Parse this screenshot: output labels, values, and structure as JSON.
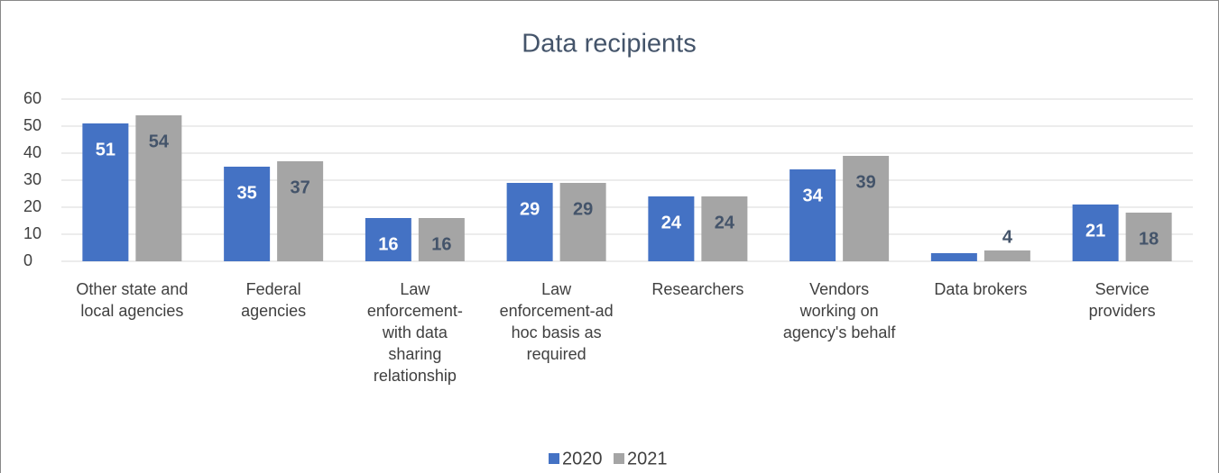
{
  "chart_data": {
    "type": "bar",
    "title": "Data recipients",
    "categories": [
      "Other state and local agencies",
      "Federal agencies",
      "Law enforcement-with data sharing relationship",
      "Law enforcement-ad hoc basis as required",
      "Researchers",
      "Vendors working on agency's behalf",
      "Data brokers",
      "Service providers"
    ],
    "series": [
      {
        "name": "2020",
        "color": "#4472c4",
        "values": [
          51,
          35,
          16,
          29,
          24,
          34,
          3,
          21
        ],
        "value_labels": [
          "51",
          "35",
          "16",
          "29",
          "24",
          "34",
          null,
          "21"
        ]
      },
      {
        "name": "2021",
        "color": "#a5a5a5",
        "values": [
          54,
          37,
          16,
          29,
          24,
          39,
          4,
          18
        ],
        "value_labels": [
          "54",
          "37",
          "16",
          "29",
          "24",
          "39",
          "4",
          "18"
        ]
      }
    ],
    "ylim": [
      0,
      60
    ],
    "yticks": [
      0,
      10,
      20,
      30,
      40,
      50,
      60
    ],
    "grid": true,
    "legend": "bottom"
  }
}
